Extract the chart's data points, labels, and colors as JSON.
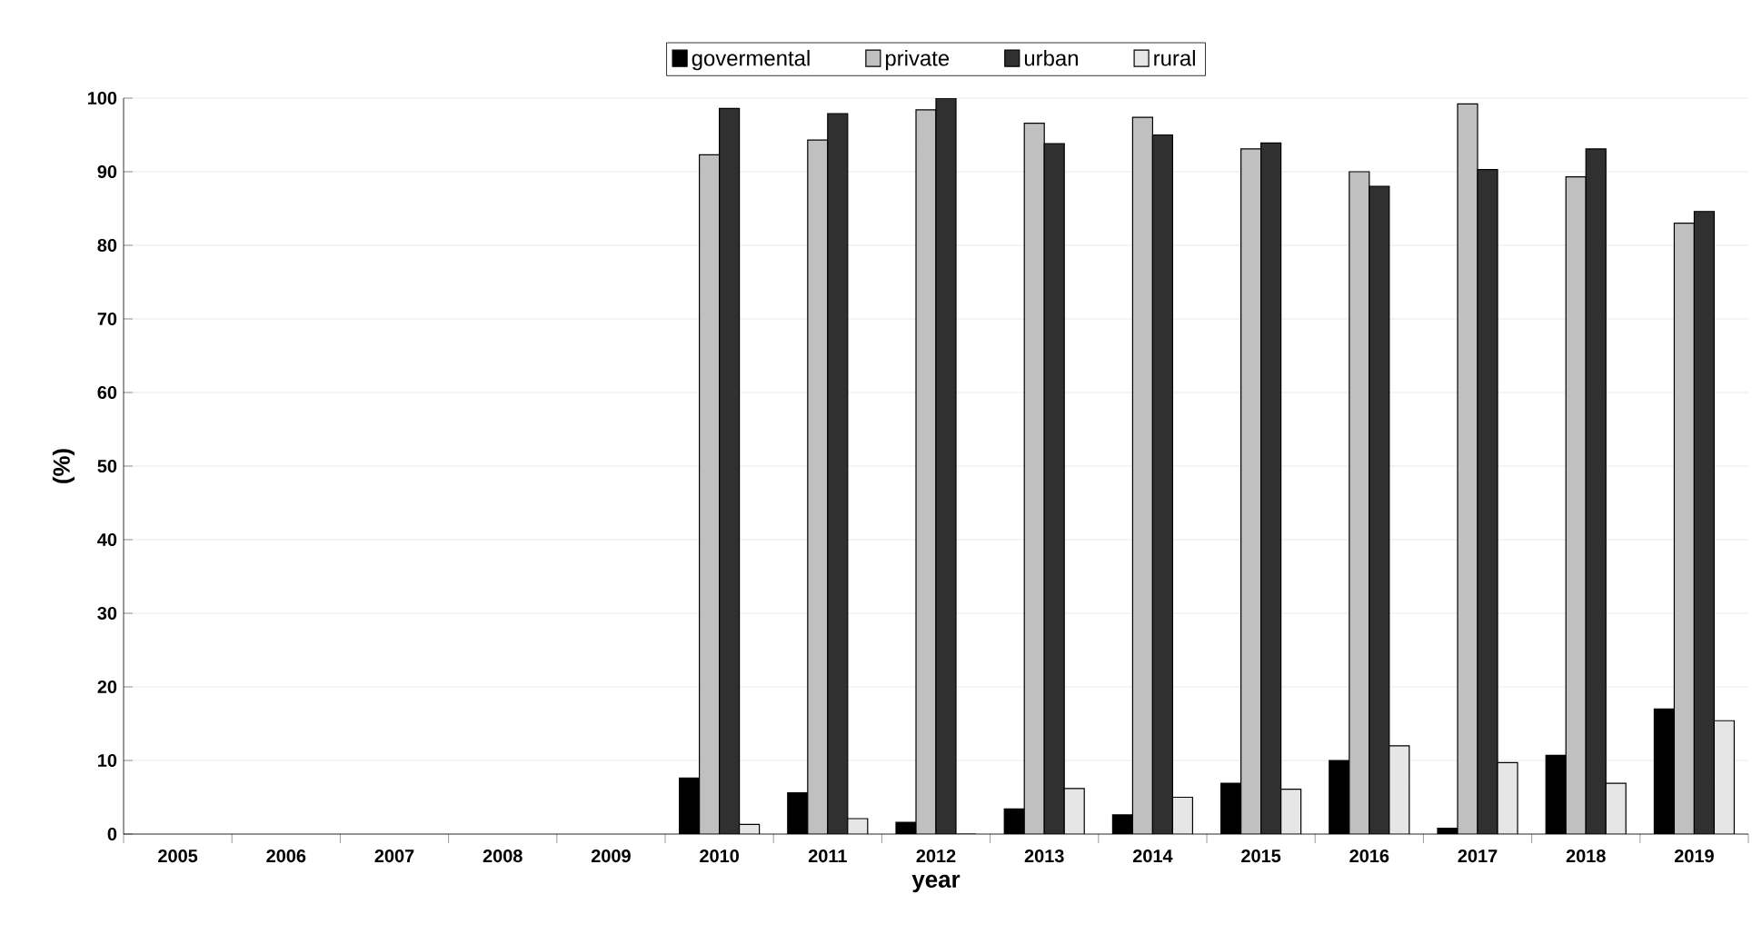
{
  "chart_data": {
    "type": "bar",
    "xlabel": "year",
    "ylabel": "(%)",
    "categories": [
      "2005",
      "2006",
      "2007",
      "2008",
      "2009",
      "2010",
      "2011",
      "2012",
      "2013",
      "2014",
      "2015",
      "2016",
      "2017",
      "2018",
      "2019"
    ],
    "series": [
      {
        "name": "govermental",
        "color": "#000000",
        "values": [
          null,
          null,
          null,
          null,
          null,
          7.6,
          5.6,
          1.6,
          3.4,
          2.6,
          6.9,
          10,
          0.8,
          10.7,
          17
        ]
      },
      {
        "name": "private",
        "color": "#c0c0c0",
        "values": [
          null,
          null,
          null,
          null,
          null,
          92.3,
          94.3,
          98.4,
          96.6,
          97.4,
          93.1,
          90,
          99.2,
          89.3,
          83
        ]
      },
      {
        "name": "urban",
        "color": "#303030",
        "values": [
          null,
          null,
          null,
          null,
          null,
          98.6,
          97.9,
          100,
          93.8,
          95,
          93.9,
          88,
          90.3,
          93.1,
          84.6
        ]
      },
      {
        "name": "rural",
        "color": "#e6e6e6",
        "values": [
          null,
          null,
          null,
          null,
          null,
          1.3,
          2.1,
          0,
          6.2,
          5,
          6.1,
          12,
          9.7,
          6.9,
          15.4
        ]
      }
    ],
    "ylim": [
      0,
      100
    ],
    "yticks": [
      0,
      10,
      20,
      30,
      40,
      50,
      60,
      70,
      80,
      90,
      100
    ],
    "grid": "y",
    "legend": "top"
  }
}
